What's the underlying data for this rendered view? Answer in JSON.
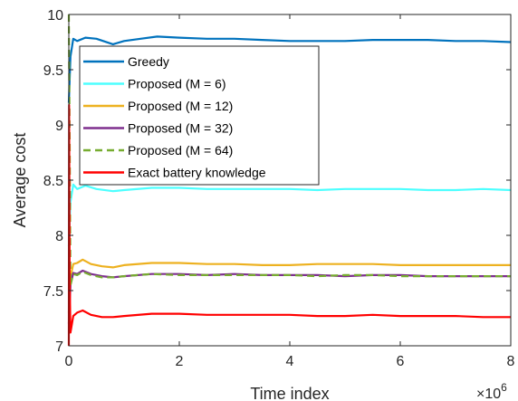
{
  "chart_data": {
    "type": "line",
    "xlabel": "Time index",
    "ylabel": "Average cost",
    "x_exponent_label": {
      "base": "×10",
      "exp": "6"
    },
    "xlim": [
      0,
      8
    ],
    "ylim": [
      7,
      10
    ],
    "xticks": [
      0,
      2,
      4,
      6,
      8
    ],
    "xtick_labels": [
      "0",
      "2",
      "4",
      "6",
      "8"
    ],
    "yticks": [
      7,
      7.5,
      8,
      8.5,
      9,
      9.5,
      10
    ],
    "ytick_labels": [
      "7",
      "7.5",
      "8",
      "8.5",
      "9",
      "9.5",
      "10"
    ],
    "grid": false,
    "legend_position": "top-left",
    "series": [
      {
        "name": "Greedy",
        "color": "#0072BD",
        "dash": "solid",
        "points": [
          [
            0.0,
            9.2
          ],
          [
            0.03,
            9.62
          ],
          [
            0.08,
            9.78
          ],
          [
            0.15,
            9.76
          ],
          [
            0.3,
            9.79
          ],
          [
            0.5,
            9.78
          ],
          [
            0.8,
            9.73
          ],
          [
            1.0,
            9.76
          ],
          [
            1.3,
            9.78
          ],
          [
            1.6,
            9.8
          ],
          [
            2.0,
            9.79
          ],
          [
            2.5,
            9.78
          ],
          [
            3.0,
            9.78
          ],
          [
            3.5,
            9.77
          ],
          [
            4.0,
            9.76
          ],
          [
            4.5,
            9.76
          ],
          [
            5.0,
            9.76
          ],
          [
            5.5,
            9.77
          ],
          [
            6.0,
            9.77
          ],
          [
            6.5,
            9.77
          ],
          [
            7.0,
            9.76
          ],
          [
            7.5,
            9.76
          ],
          [
            8.0,
            9.75
          ]
        ]
      },
      {
        "name": "Proposed (M = 6)",
        "color": "#4DFFFF",
        "dash": "solid",
        "points": [
          [
            0.0,
            7.9
          ],
          [
            0.03,
            8.3
          ],
          [
            0.08,
            8.46
          ],
          [
            0.15,
            8.42
          ],
          [
            0.3,
            8.45
          ],
          [
            0.5,
            8.42
          ],
          [
            0.8,
            8.4
          ],
          [
            1.0,
            8.41
          ],
          [
            1.5,
            8.43
          ],
          [
            2.0,
            8.43
          ],
          [
            2.5,
            8.42
          ],
          [
            3.0,
            8.42
          ],
          [
            3.5,
            8.42
          ],
          [
            4.0,
            8.42
          ],
          [
            4.5,
            8.41
          ],
          [
            5.0,
            8.42
          ],
          [
            5.5,
            8.42
          ],
          [
            6.0,
            8.42
          ],
          [
            6.5,
            8.41
          ],
          [
            7.0,
            8.41
          ],
          [
            7.5,
            8.42
          ],
          [
            8.0,
            8.41
          ]
        ]
      },
      {
        "name": "Proposed (M = 12)",
        "color": "#EDB120",
        "dash": "solid",
        "points": [
          [
            0.0,
            7.3
          ],
          [
            0.03,
            7.62
          ],
          [
            0.08,
            7.74
          ],
          [
            0.15,
            7.75
          ],
          [
            0.25,
            7.78
          ],
          [
            0.4,
            7.74
          ],
          [
            0.6,
            7.72
          ],
          [
            0.8,
            7.71
          ],
          [
            1.0,
            7.73
          ],
          [
            1.5,
            7.75
          ],
          [
            2.0,
            7.75
          ],
          [
            2.5,
            7.74
          ],
          [
            3.0,
            7.74
          ],
          [
            3.5,
            7.73
          ],
          [
            4.0,
            7.73
          ],
          [
            4.5,
            7.74
          ],
          [
            5.0,
            7.74
          ],
          [
            5.5,
            7.74
          ],
          [
            6.0,
            7.73
          ],
          [
            6.5,
            7.73
          ],
          [
            7.0,
            7.73
          ],
          [
            7.5,
            7.73
          ],
          [
            8.0,
            7.73
          ]
        ]
      },
      {
        "name": "Proposed (M = 32)",
        "color": "#7E2F8E",
        "dash": "solid",
        "points": [
          [
            0.0,
            7.2
          ],
          [
            0.03,
            7.55
          ],
          [
            0.08,
            7.66
          ],
          [
            0.15,
            7.65
          ],
          [
            0.25,
            7.68
          ],
          [
            0.4,
            7.65
          ],
          [
            0.6,
            7.63
          ],
          [
            0.8,
            7.62
          ],
          [
            1.0,
            7.63
          ],
          [
            1.5,
            7.65
          ],
          [
            2.0,
            7.65
          ],
          [
            2.5,
            7.64
          ],
          [
            3.0,
            7.65
          ],
          [
            3.5,
            7.64
          ],
          [
            4.0,
            7.64
          ],
          [
            4.5,
            7.64
          ],
          [
            5.0,
            7.63
          ],
          [
            5.5,
            7.64
          ],
          [
            6.0,
            7.64
          ],
          [
            6.5,
            7.63
          ],
          [
            7.0,
            7.63
          ],
          [
            7.5,
            7.63
          ],
          [
            8.0,
            7.63
          ]
        ]
      },
      {
        "name": "Proposed (M = 64)",
        "color": "#77AC30",
        "dash": "dashed",
        "points": [
          [
            0.0,
            10.0
          ],
          [
            0.005,
            9.6
          ],
          [
            0.015,
            8.9
          ],
          [
            0.03,
            7.55
          ],
          [
            0.08,
            7.65
          ],
          [
            0.15,
            7.64
          ],
          [
            0.25,
            7.67
          ],
          [
            0.4,
            7.64
          ],
          [
            0.6,
            7.62
          ],
          [
            0.8,
            7.62
          ],
          [
            1.0,
            7.63
          ],
          [
            1.5,
            7.65
          ],
          [
            2.0,
            7.64
          ],
          [
            2.5,
            7.64
          ],
          [
            3.0,
            7.64
          ],
          [
            3.5,
            7.64
          ],
          [
            4.0,
            7.64
          ],
          [
            4.5,
            7.63
          ],
          [
            5.0,
            7.64
          ],
          [
            5.5,
            7.64
          ],
          [
            6.0,
            7.63
          ],
          [
            6.5,
            7.63
          ],
          [
            7.0,
            7.63
          ],
          [
            7.5,
            7.63
          ],
          [
            8.0,
            7.63
          ]
        ]
      },
      {
        "name": "Exact battery knowledge",
        "color": "#FF0000",
        "dash": "solid",
        "points": [
          [
            0.0,
            7.0
          ],
          [
            0.005,
            9.18
          ],
          [
            0.015,
            7.6
          ],
          [
            0.03,
            7.12
          ],
          [
            0.08,
            7.27
          ],
          [
            0.15,
            7.3
          ],
          [
            0.25,
            7.32
          ],
          [
            0.4,
            7.28
          ],
          [
            0.6,
            7.26
          ],
          [
            0.8,
            7.26
          ],
          [
            1.0,
            7.27
          ],
          [
            1.5,
            7.29
          ],
          [
            2.0,
            7.29
          ],
          [
            2.5,
            7.28
          ],
          [
            3.0,
            7.28
          ],
          [
            3.5,
            7.28
          ],
          [
            4.0,
            7.28
          ],
          [
            4.5,
            7.27
          ],
          [
            5.0,
            7.27
          ],
          [
            5.5,
            7.28
          ],
          [
            6.0,
            7.27
          ],
          [
            6.5,
            7.27
          ],
          [
            7.0,
            7.27
          ],
          [
            7.5,
            7.26
          ],
          [
            8.0,
            7.26
          ]
        ]
      }
    ]
  }
}
